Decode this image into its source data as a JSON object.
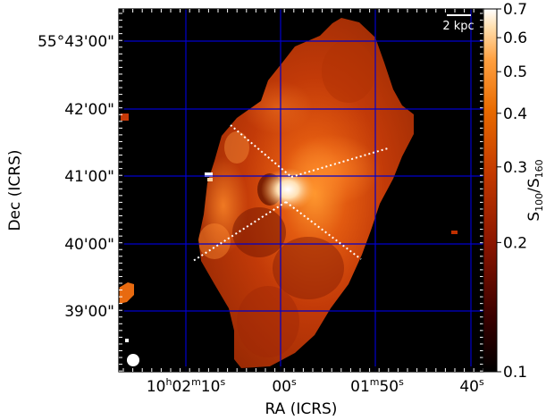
{
  "axes": {
    "xlabel": "RA (ICRS)",
    "ylabel": "Dec (ICRS)",
    "x_ticks": [
      {
        "main": "10",
        "sup1": "h",
        "mid": "02",
        "sup2": "m",
        "end": "10",
        "sup3": "s"
      },
      {
        "main": "00",
        "sup3": "s"
      },
      {
        "main": "01",
        "sup2": "m",
        "end": "50",
        "sup3": "s"
      },
      {
        "main": "40",
        "sup3": "s"
      }
    ],
    "y_ticks": [
      "55°43'00\"",
      "42'00\"",
      "41'00\"",
      "40'00\"",
      "39'00\""
    ]
  },
  "colorbar": {
    "label_prefix": "S",
    "label_sub1": "100",
    "label_mid": "/S",
    "label_sub2": "160",
    "scale": "log",
    "range": [
      0.1,
      0.7
    ],
    "tick_labels": [
      "0.7",
      "0.6",
      "0.5",
      "0.4",
      "0.3",
      "0.2",
      "0.1"
    ],
    "tick_values": [
      0.7,
      0.6,
      0.5,
      0.4,
      0.3,
      0.2,
      0.1
    ],
    "colormap": [
      "#000000",
      "#3a0000",
      "#8a1500",
      "#c43a00",
      "#e86a00",
      "#ffa040",
      "#ffe0b0",
      "#ffffff"
    ]
  },
  "scalebar": {
    "label": "2 kpc"
  },
  "colors": {
    "grid": "#0000cc",
    "overlay_lines": "#ffffff",
    "background": "#000000"
  }
}
